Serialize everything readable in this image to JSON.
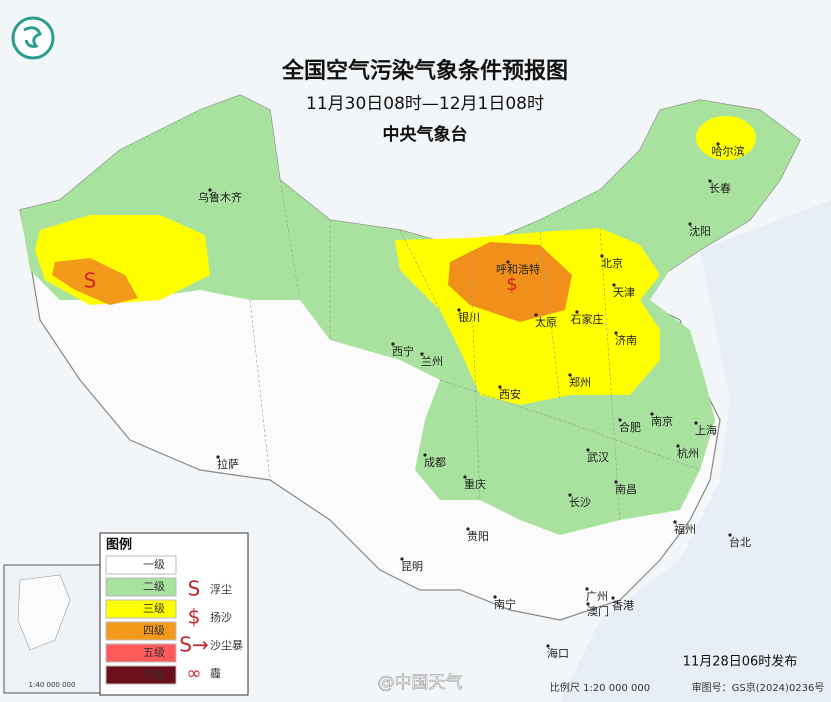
{
  "header": {
    "title": "全国空气污染气象条件预报图",
    "period": "11月30日08时—12月1日08时",
    "issuer": "中央气象台"
  },
  "cities": [
    "乌鲁木齐",
    "哈尔滨",
    "长春",
    "沈阳",
    "呼和浩特",
    "北京",
    "天津",
    "银川",
    "太原",
    "石家庄",
    "济南",
    "西宁",
    "兰州",
    "郑州",
    "西安",
    "合肥",
    "南京",
    "上海",
    "杭州",
    "成都",
    "武汉",
    "重庆",
    "南昌",
    "长沙",
    "拉萨",
    "贵阳",
    "福州",
    "台北",
    "昆明",
    "广州",
    "澳门",
    "香港",
    "南宁",
    "海口"
  ],
  "legend": {
    "title": "图例",
    "levels": [
      "一级",
      "二级",
      "三级",
      "四级",
      "五级",
      "六级"
    ],
    "phenomena": [
      "浮尘",
      "扬沙",
      "沙尘暴",
      "霾"
    ]
  },
  "inset": {
    "scale": "1:40 000 000"
  },
  "footer": {
    "issued": "11月28日06时发布",
    "scale": "比例尺 1:20 000 000",
    "map_number": "审图号：GS京(2024)0236号",
    "watermark": "@中国天气"
  }
}
